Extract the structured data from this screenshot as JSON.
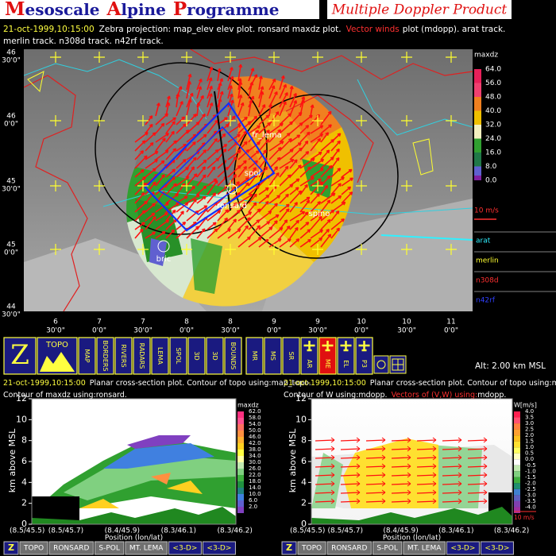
{
  "header": {
    "title_words": [
      "Mesoscale",
      "Alpine",
      "Programme"
    ],
    "product": "Multiple Doppler Product"
  },
  "map_caption": {
    "timestamp": "21-oct-1999,10:15:00",
    "text1": "Zebra projection: map_elev elev plot.  ronsard maxdz plot.",
    "highlight": "Vector winds",
    "text2": "plot (mdopp). arat track.",
    "line2": "merlin track.   n308d track.   n42rf track."
  },
  "map": {
    "lat_labels": [
      [
        "46",
        "30'0\""
      ],
      [
        "46",
        "0'0\""
      ],
      [
        "45",
        "30'0\""
      ],
      [
        "45",
        "0'0\""
      ],
      [
        "44",
        "30'0\""
      ]
    ],
    "lon_labels": [
      [
        "6",
        "30'0\""
      ],
      [
        "7",
        "0'0\""
      ],
      [
        "7",
        "30'0\""
      ],
      [
        "8",
        "0'0\""
      ],
      [
        "8",
        "30'0\""
      ],
      [
        "9",
        "0'0\""
      ],
      [
        "9",
        "30'0\""
      ],
      [
        "10",
        "0'0\""
      ],
      [
        "10",
        "30'0\""
      ],
      [
        "11",
        "0'0\""
      ]
    ],
    "sites": [
      "fr_lema",
      "spol",
      "ronsard",
      "spino",
      "bric"
    ],
    "colorbar": {
      "title": "maxdz",
      "levels": [
        "64.0",
        "56.0",
        "48.0",
        "40.0",
        "32.0",
        "24.0",
        "16.0",
        "8.0",
        "0.0"
      ]
    },
    "vector_scale": "10 m/s",
    "tracks": [
      "arat",
      "merlin",
      "n308d",
      "n42rf"
    ]
  },
  "toolbar": {
    "buttons": [
      "Z",
      "TOPO",
      "MAP",
      "BORDERS",
      "RIVERS",
      "RADARS",
      "LEMA",
      "SPOL",
      "3D",
      "3D",
      "BOUNDS",
      "MR",
      "MS",
      "SR",
      "AR",
      "ME",
      "EL",
      "P3"
    ],
    "altitude": "Alt: 2.00 km MSL"
  },
  "panels": [
    {
      "caption_date": "21-oct-1999,10:15:00",
      "caption1": "Planar cross-section plot.  Contour of topo using:map_topo.",
      "caption2": "Contour of maxdz using:ronsard.",
      "y_label": "km above MSL",
      "x_label": "Position (lon/lat)",
      "x_ticks": [
        "(8.5/45.5)",
        "(8.5/45.7)",
        "(8.4/45.9)",
        "(8.3/46.1)",
        "(8.3/46.2)"
      ],
      "ylim": [
        0,
        12
      ],
      "yticks": [
        0,
        2,
        4,
        6,
        8,
        10,
        12
      ],
      "colorbar": {
        "title": "maxdz",
        "levels": [
          "62.0",
          "58.0",
          "54.0",
          "50.0",
          "46.0",
          "42.0",
          "38.0",
          "34.0",
          "30.0",
          "26.0",
          "22.0",
          "18.0",
          "14.0",
          "10.0",
          "6.0",
          "2.0"
        ]
      }
    },
    {
      "caption_date": "21-oct-1999,10:15:00",
      "caption1": "Planar cross-section plot.  Contour of topo using:map_topo.",
      "caption2": "Contour of W using:mdopp.",
      "caption3": "Vectors of (V,W) using:",
      "caption4": "mdopp.",
      "y_label": "km above MSL",
      "x_label": "Position (lon/lat)",
      "x_ticks": [
        "(8.5/45.5)",
        "(8.5/45.7)",
        "(8.4/45.9)",
        "(8.3/46.1)",
        "(8.3/46.2)"
      ],
      "ylim": [
        0,
        12
      ],
      "yticks": [
        0,
        2,
        4,
        6,
        8,
        10,
        12
      ],
      "colorbar": {
        "title": "W[m/s]",
        "levels": [
          "4.0",
          "3.5",
          "3.0",
          "2.5",
          "2.0",
          "1.5",
          "1.0",
          "0.5",
          "0.0",
          "-0.5",
          "-1.0",
          "-1.5",
          "-2.0",
          "-2.5",
          "-3.0",
          "-3.5",
          "-4.0"
        ]
      },
      "vector_scale": "10 m/s"
    }
  ],
  "bottom_bars": [
    [
      "Z",
      "TOPO",
      "RONSARD",
      "S-POL",
      "MT. LEMA",
      "<3-D>",
      "<3-D>"
    ],
    [
      "Z",
      "TOPO",
      "RONSARD",
      "S-POL",
      "MT. LEMA",
      "<3-D>",
      "<3-D>"
    ]
  ]
}
